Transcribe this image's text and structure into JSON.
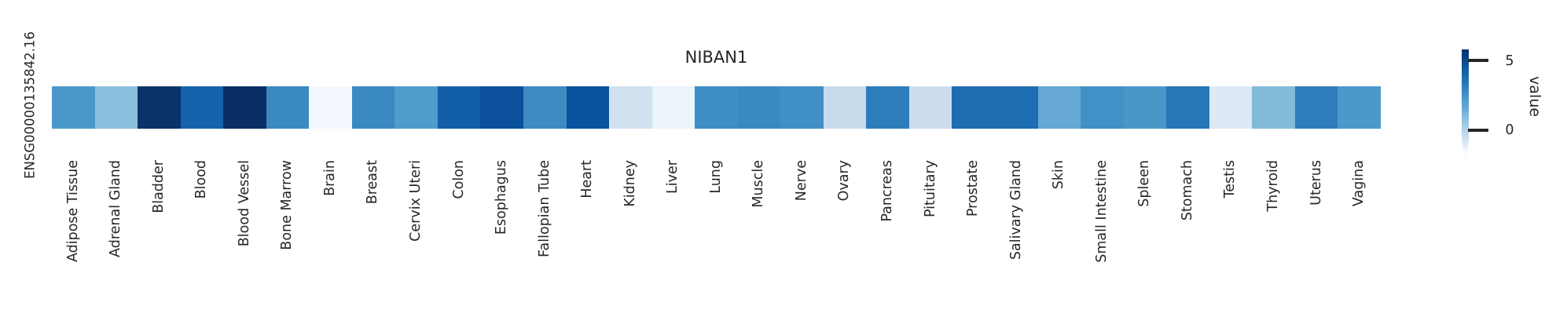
{
  "figure": {
    "title": "NIBAN1",
    "y_axis_label": "ENSG00000135842.16",
    "background_color": "#ffffff",
    "text_color": "#262626",
    "colorbar": {
      "label": "value",
      "tick_top": "5",
      "tick_bottom": "0"
    }
  },
  "chart_data": {
    "type": "heatmap",
    "title": "NIBAN1",
    "row_label": "ENSG00000135842.16",
    "colormap": "Blues",
    "legend_position": "right",
    "colorbar_label": "value",
    "colorbar_ticks": [
      0,
      5
    ],
    "value_range_estimate": [
      -2.2,
      5.8
    ],
    "categories": [
      "Adipose Tissue",
      "Adrenal Gland",
      "Bladder",
      "Blood",
      "Blood Vessel",
      "Bone Marrow",
      "Brain",
      "Breast",
      "Cervix Uteri",
      "Colon",
      "Esophagus",
      "Fallopian Tube",
      "Heart",
      "Kidney",
      "Liver",
      "Lung",
      "Muscle",
      "Nerve",
      "Ovary",
      "Pancreas",
      "Pituitary",
      "Prostate",
      "Salivary Gland",
      "Skin",
      "Small Intestine",
      "Spleen",
      "Stomach",
      "Testis",
      "Thyroid",
      "Uterus",
      "Vagina"
    ],
    "values": [
      2.6,
      1.3,
      5.6,
      4.1,
      5.8,
      3.0,
      -2.0,
      3.0,
      2.5,
      4.2,
      4.8,
      2.9,
      4.8,
      -0.5,
      -1.7,
      2.8,
      3.0,
      2.8,
      -0.2,
      3.4,
      -0.4,
      3.9,
      3.9,
      2.0,
      2.8,
      2.5,
      3.6,
      -1.2,
      1.4,
      3.4,
      2.5
    ],
    "colors": [
      "#4a98c9",
      "#8abfdd",
      "#0a3369",
      "#1763ab",
      "#092e66",
      "#3a89c1",
      "#f4f8fe",
      "#3a8ac1",
      "#4f9bcb",
      "#135fa7",
      "#0a509d",
      "#3e8ac2",
      "#0a519e",
      "#d2e1ef",
      "#ebf3fb",
      "#3e8dc4",
      "#3a8ac2",
      "#4090c5",
      "#c8dbed",
      "#2f7cba",
      "#ccddef",
      "#1e6cb1",
      "#1e6cb1",
      "#66a9d4",
      "#4190c6",
      "#4b96c9",
      "#2776b7",
      "#dde9f5",
      "#82bbda",
      "#2f7cbb",
      "#4b98ca"
    ]
  }
}
